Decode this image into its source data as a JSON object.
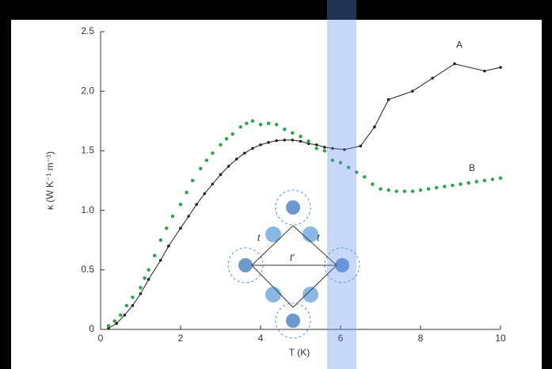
{
  "chart_data": {
    "type": "line",
    "x_label": "T (K)",
    "y_label": "κ (W K⁻¹ m⁻¹)",
    "xlim": [
      0,
      10
    ],
    "xticks": [
      0,
      2,
      4,
      6,
      8,
      10
    ],
    "ylim": [
      0,
      2.5
    ],
    "yticks": [
      0,
      0.5,
      {
        "value": 1,
        "label": "1.0"
      },
      1.5,
      {
        "value": 2,
        "label": "2.0"
      },
      2.5
    ],
    "series": [
      {
        "name": "A",
        "color": "#222222",
        "markers": "line-dots",
        "x": [
          0.2,
          0.4,
          0.6,
          0.8,
          1.0,
          1.2,
          1.5,
          1.7,
          2.0,
          2.2,
          2.4,
          2.6,
          2.8,
          3.0,
          3.2,
          3.4,
          3.6,
          3.8,
          4.0,
          4.2,
          4.4,
          4.6,
          4.8,
          5.0,
          5.2,
          5.4,
          5.6,
          5.8,
          6.1,
          6.5,
          6.85,
          7.2,
          7.8,
          8.3,
          8.85,
          9.6,
          10
        ],
        "values": [
          0.01,
          0.05,
          0.12,
          0.2,
          0.3,
          0.42,
          0.58,
          0.7,
          0.85,
          0.95,
          1.05,
          1.14,
          1.22,
          1.3,
          1.37,
          1.43,
          1.48,
          1.52,
          1.55,
          1.57,
          1.585,
          1.59,
          1.59,
          1.58,
          1.56,
          1.55,
          1.53,
          1.52,
          1.51,
          1.54,
          1.7,
          1.93,
          2.0,
          2.11,
          2.23,
          2.17,
          2.2
        ]
      },
      {
        "name": "B",
        "color": "#2e9e4f",
        "markers": "dots",
        "x": [
          0.2,
          0.35,
          0.5,
          0.65,
          0.8,
          1.0,
          1.1,
          1.2,
          1.35,
          1.5,
          1.65,
          1.8,
          2.0,
          2.15,
          2.3,
          2.5,
          2.65,
          2.8,
          3.0,
          3.15,
          3.3,
          3.5,
          3.65,
          3.8,
          4.0,
          4.2,
          4.4,
          4.6,
          4.8,
          5.0,
          5.2,
          5.4,
          5.6,
          5.8,
          6.0,
          6.2,
          6.4,
          6.6,
          6.8,
          7.0,
          7.2,
          7.4,
          7.6,
          7.8,
          8.0,
          8.2,
          8.4,
          8.6,
          8.8,
          9.0,
          9.2,
          9.4,
          9.6,
          9.8,
          10.0
        ],
        "values": [
          0.03,
          0.07,
          0.12,
          0.2,
          0.27,
          0.35,
          0.43,
          0.5,
          0.62,
          0.75,
          0.85,
          0.95,
          1.05,
          1.15,
          1.25,
          1.35,
          1.42,
          1.48,
          1.55,
          1.6,
          1.64,
          1.7,
          1.73,
          1.75,
          1.72,
          1.73,
          1.72,
          1.68,
          1.65,
          1.62,
          1.58,
          1.52,
          1.5,
          1.42,
          1.4,
          1.36,
          1.32,
          1.28,
          1.22,
          1.18,
          1.17,
          1.16,
          1.16,
          1.16,
          1.17,
          1.18,
          1.19,
          1.2,
          1.21,
          1.22,
          1.23,
          1.24,
          1.25,
          1.26,
          1.27
        ]
      }
    ],
    "inset_labels": [
      "t",
      "t",
      "t′"
    ]
  }
}
